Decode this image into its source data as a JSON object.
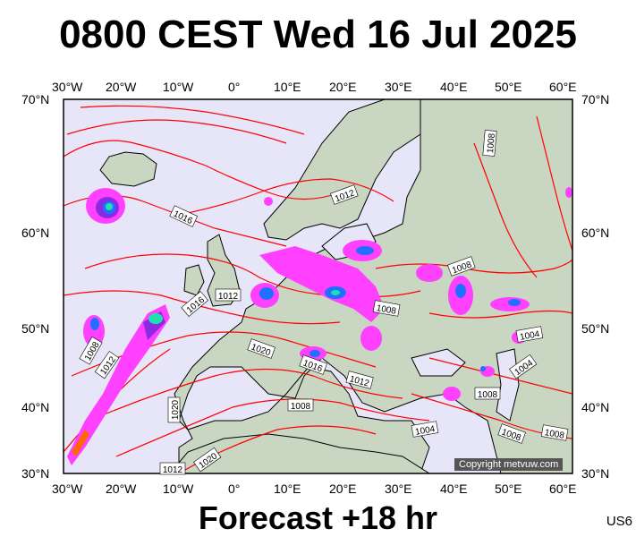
{
  "title": "0800 CEST Wed 16 Jul 2025",
  "footer": "Forecast +18 hr",
  "corner_tag": "US6",
  "copyright": "Copyright metvuw.com",
  "axes": {
    "lon_labels": [
      "30°W",
      "20°W",
      "10°W",
      "0°",
      "10°E",
      "20°E",
      "30°E",
      "40°E",
      "50°E",
      "60°E"
    ],
    "lat_labels": [
      "70°N",
      "60°N",
      "50°N",
      "40°N",
      "30°N"
    ]
  },
  "isobar_labels": [
    "1016",
    "1012",
    "1012",
    "1016",
    "1008",
    "1012",
    "1020",
    "1016",
    "1012",
    "1008",
    "1020",
    "1020",
    "1012",
    "1008",
    "1004",
    "1004",
    "1008",
    "1004",
    "1008",
    "1008",
    "1008",
    "1008"
  ],
  "colors": {
    "ocean": "#e6e6f8",
    "land": "#c9d6c2",
    "isobar": "#ff0000",
    "coast": "#000000",
    "rain_light": "#ff40ff",
    "rain_mid": "#8a2be2",
    "rain_heavy": "#2070ff",
    "rain_core": "#20e0b0"
  }
}
